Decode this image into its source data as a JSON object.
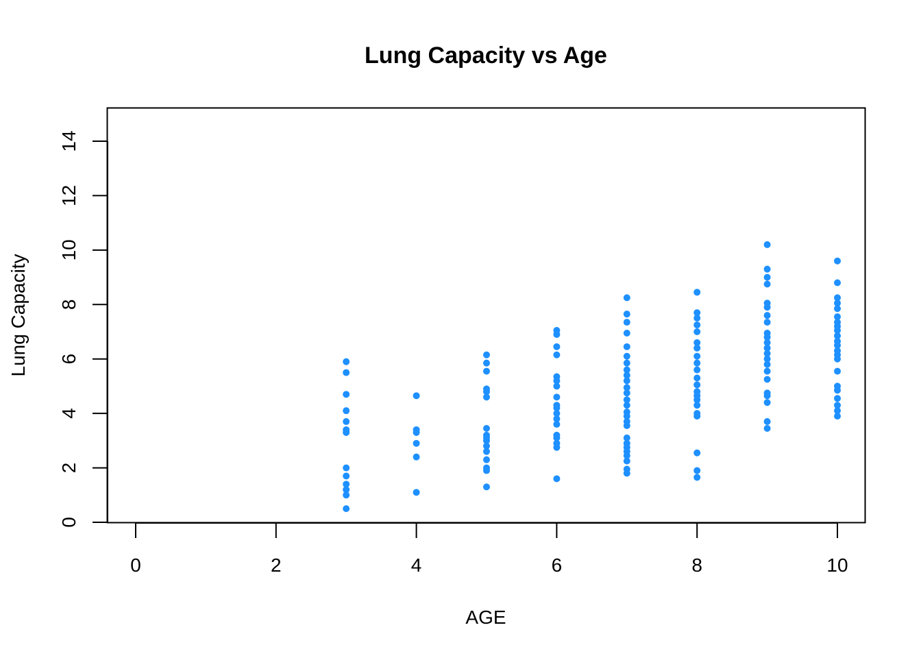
{
  "chart_data": {
    "type": "scatter",
    "title": "Lung Capacity vs Age",
    "xlabel": "AGE",
    "ylabel": "Lung Capacity",
    "xlim": [
      0,
      10
    ],
    "ylim": [
      0,
      14
    ],
    "x_ticks": [
      0,
      2,
      4,
      6,
      8,
      10
    ],
    "y_ticks": [
      0,
      2,
      4,
      6,
      8,
      10,
      12,
      14
    ],
    "grid": false,
    "point_color": "#1E90FF",
    "series": [
      {
        "points": [
          [
            3,
            0.5
          ],
          [
            3,
            1.0
          ],
          [
            3,
            1.2
          ],
          [
            3,
            1.4
          ],
          [
            3,
            1.7
          ],
          [
            3,
            2.0
          ],
          [
            3,
            3.3
          ],
          [
            3,
            3.4
          ],
          [
            3,
            3.7
          ],
          [
            3,
            4.1
          ],
          [
            3,
            4.7
          ],
          [
            3,
            5.5
          ],
          [
            3,
            5.9
          ],
          [
            4,
            1.1
          ],
          [
            4,
            2.4
          ],
          [
            4,
            2.9
          ],
          [
            4,
            3.3
          ],
          [
            4,
            3.4
          ],
          [
            4,
            4.65
          ],
          [
            5,
            1.3
          ],
          [
            5,
            1.9
          ],
          [
            5,
            2.0
          ],
          [
            5,
            2.3
          ],
          [
            5,
            2.6
          ],
          [
            5,
            2.8
          ],
          [
            5,
            3.0
          ],
          [
            5,
            3.1
          ],
          [
            5,
            3.2
          ],
          [
            5,
            3.45
          ],
          [
            5,
            4.6
          ],
          [
            5,
            4.8
          ],
          [
            5,
            4.9
          ],
          [
            5,
            5.55
          ],
          [
            5,
            5.85
          ],
          [
            5,
            6.15
          ],
          [
            6,
            1.6
          ],
          [
            6,
            2.75
          ],
          [
            6,
            2.9
          ],
          [
            6,
            3.1
          ],
          [
            6,
            3.2
          ],
          [
            6,
            3.6
          ],
          [
            6,
            3.8
          ],
          [
            6,
            4.0
          ],
          [
            6,
            4.2
          ],
          [
            6,
            4.3
          ],
          [
            6,
            4.6
          ],
          [
            6,
            5.0
          ],
          [
            6,
            5.2
          ],
          [
            6,
            5.35
          ],
          [
            6,
            6.15
          ],
          [
            6,
            6.45
          ],
          [
            6,
            6.9
          ],
          [
            6,
            7.05
          ],
          [
            7,
            1.8
          ],
          [
            7,
            1.95
          ],
          [
            7,
            2.25
          ],
          [
            7,
            2.45
          ],
          [
            7,
            2.6
          ],
          [
            7,
            2.75
          ],
          [
            7,
            2.9
          ],
          [
            7,
            3.1
          ],
          [
            7,
            3.55
          ],
          [
            7,
            3.7
          ],
          [
            7,
            3.9
          ],
          [
            7,
            4.05
          ],
          [
            7,
            4.3
          ],
          [
            7,
            4.5
          ],
          [
            7,
            4.75
          ],
          [
            7,
            4.95
          ],
          [
            7,
            5.2
          ],
          [
            7,
            5.4
          ],
          [
            7,
            5.6
          ],
          [
            7,
            5.85
          ],
          [
            7,
            6.1
          ],
          [
            7,
            6.45
          ],
          [
            7,
            6.95
          ],
          [
            7,
            7.35
          ],
          [
            7,
            7.65
          ],
          [
            7,
            8.25
          ],
          [
            8,
            1.65
          ],
          [
            8,
            1.9
          ],
          [
            8,
            2.55
          ],
          [
            8,
            3.9
          ],
          [
            8,
            4.0
          ],
          [
            8,
            4.3
          ],
          [
            8,
            4.5
          ],
          [
            8,
            4.65
          ],
          [
            8,
            4.8
          ],
          [
            8,
            5.05
          ],
          [
            8,
            5.3
          ],
          [
            8,
            5.6
          ],
          [
            8,
            5.85
          ],
          [
            8,
            6.1
          ],
          [
            8,
            6.4
          ],
          [
            8,
            6.6
          ],
          [
            8,
            7.0
          ],
          [
            8,
            7.25
          ],
          [
            8,
            7.5
          ],
          [
            8,
            7.7
          ],
          [
            8,
            8.45
          ],
          [
            9,
            3.45
          ],
          [
            9,
            3.7
          ],
          [
            9,
            4.4
          ],
          [
            9,
            4.65
          ],
          [
            9,
            4.75
          ],
          [
            9,
            5.25
          ],
          [
            9,
            5.55
          ],
          [
            9,
            5.8
          ],
          [
            9,
            6.0
          ],
          [
            9,
            6.2
          ],
          [
            9,
            6.4
          ],
          [
            9,
            6.6
          ],
          [
            9,
            6.8
          ],
          [
            9,
            6.95
          ],
          [
            9,
            7.35
          ],
          [
            9,
            7.6
          ],
          [
            9,
            7.9
          ],
          [
            9,
            8.05
          ],
          [
            9,
            8.75
          ],
          [
            9,
            9.0
          ],
          [
            9,
            9.3
          ],
          [
            9,
            10.2
          ],
          [
            10,
            3.9
          ],
          [
            10,
            4.1
          ],
          [
            10,
            4.3
          ],
          [
            10,
            4.55
          ],
          [
            10,
            4.85
          ],
          [
            10,
            5.0
          ],
          [
            10,
            5.55
          ],
          [
            10,
            6.0
          ],
          [
            10,
            6.15
          ],
          [
            10,
            6.3
          ],
          [
            10,
            6.5
          ],
          [
            10,
            6.65
          ],
          [
            10,
            6.85
          ],
          [
            10,
            7.05
          ],
          [
            10,
            7.2
          ],
          [
            10,
            7.35
          ],
          [
            10,
            7.55
          ],
          [
            10,
            7.85
          ],
          [
            10,
            8.05
          ],
          [
            10,
            8.25
          ],
          [
            10,
            8.8
          ],
          [
            10,
            9.6
          ]
        ]
      }
    ]
  }
}
